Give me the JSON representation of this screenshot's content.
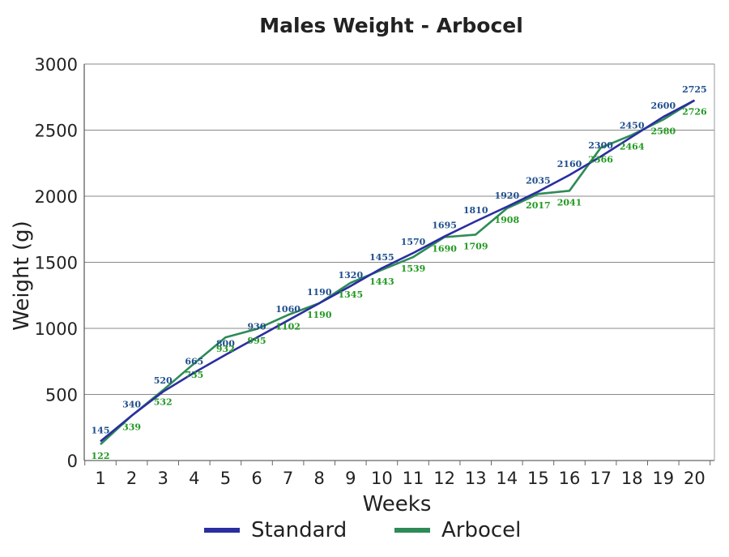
{
  "chart_data": {
    "type": "line",
    "title": "Males Weight - Arbocel",
    "xlabel": "Weeks",
    "ylabel": "Weight (g)",
    "x": [
      1,
      2,
      3,
      4,
      5,
      6,
      7,
      8,
      9,
      10,
      11,
      12,
      13,
      14,
      15,
      16,
      17,
      18,
      19,
      20
    ],
    "x_tick_labels": [
      "1",
      "2",
      "3",
      "4",
      "5",
      "6",
      "7",
      "8",
      "9",
      "10",
      "11",
      "12",
      "13",
      "14",
      "15",
      "16",
      "17",
      "18",
      "19",
      "20"
    ],
    "ylim": [
      0,
      3000
    ],
    "y_ticks": [
      0,
      500,
      1000,
      1500,
      2000,
      2500,
      3000
    ],
    "y_tick_labels": [
      "0",
      "500",
      "1000",
      "1500",
      "2000",
      "2500",
      "3000"
    ],
    "grid": "horizontal",
    "legend_position": "bottom",
    "series": [
      {
        "name": "Standard",
        "color": "#2a2ea0",
        "label_color": "#1f4e8c",
        "values": [
          145,
          340,
          520,
          665,
          800,
          930,
          1060,
          1190,
          1320,
          1455,
          1570,
          1695,
          1810,
          1920,
          2035,
          2160,
          2300,
          2450,
          2600,
          2725
        ],
        "value_labels": [
          "145",
          "340",
          "520",
          "665",
          "800",
          "930",
          "1060",
          "1190",
          "1320",
          "1455",
          "1570",
          "1695",
          "1810",
          "1920",
          "2035",
          "2160",
          "2300",
          "2450",
          "2600",
          "2725"
        ]
      },
      {
        "name": "Arbocel",
        "color": "#2e8b57",
        "label_color": "#229922",
        "values": [
          122,
          339,
          532,
          735,
          932,
          995,
          1102,
          1190,
          1345,
          1443,
          1539,
          1690,
          1709,
          1908,
          2017,
          2041,
          2366,
          2464,
          2580,
          2726
        ],
        "value_labels": [
          "122",
          "339",
          "532",
          "735",
          "932",
          "995",
          "1102",
          "1190",
          "1345",
          "1443",
          "1539",
          "1690",
          "1709",
          "1908",
          "2017",
          "2041",
          "2366",
          "2464",
          "2580",
          "2726"
        ]
      }
    ]
  }
}
